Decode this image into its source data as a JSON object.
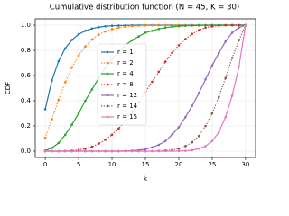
{
  "chart_data": {
    "type": "line",
    "title": "Cumulative distribution function (N = 45, K = 30)",
    "x_label": "k",
    "y_label": "CDF",
    "x": [
      0,
      1,
      2,
      3,
      4,
      5,
      6,
      7,
      8,
      9,
      10,
      11,
      12,
      13,
      14,
      15,
      16,
      17,
      18,
      19,
      20,
      21,
      22,
      23,
      24,
      25,
      26,
      27,
      28,
      29,
      30
    ],
    "xlim": [
      -1.5,
      31.5
    ],
    "xticks": [
      0,
      5,
      10,
      15,
      20,
      25,
      30
    ],
    "ylim": [
      -0.05,
      1.05
    ],
    "yticks": [
      {
        "value": 0,
        "label": "0.0"
      },
      {
        "value": 0.2,
        "label": "0.2"
      },
      {
        "value": 0.4,
        "label": "0.4"
      },
      {
        "value": 0.6,
        "label": "0.6"
      },
      {
        "value": 0.8,
        "label": "0.8"
      },
      {
        "value": 1,
        "label": "1.0"
      }
    ],
    "grid": true,
    "legend": "center",
    "series": [
      {
        "name": "r = 1",
        "color": "#1f77b4",
        "linestyle": "solid",
        "values": [
          0.333,
          0.561,
          0.714,
          0.816,
          0.883,
          0.927,
          0.955,
          0.973,
          0.984,
          0.991,
          0.995,
          0.997,
          0.998,
          0.999,
          1,
          1,
          1,
          1,
          1,
          1,
          1,
          1,
          1,
          1,
          1,
          1,
          1,
          1,
          1,
          1,
          1
        ]
      },
      {
        "name": "r = 2",
        "color": "#ff7f0e",
        "linestyle": "dotted",
        "values": [
          0.106,
          0.254,
          0.407,
          0.547,
          0.665,
          0.759,
          0.831,
          0.885,
          0.924,
          0.95,
          0.968,
          0.981,
          0.988,
          0.993,
          0.996,
          0.998,
          0.999,
          1,
          1,
          1,
          1,
          1,
          1,
          1,
          1,
          1,
          1,
          1,
          1,
          1,
          1
        ]
      },
      {
        "name": "r = 4",
        "color": "#2ca02c",
        "linestyle": "solid",
        "values": [
          0.005,
          0.025,
          0.065,
          0.13,
          0.21,
          0.3,
          0.4,
          0.49,
          0.58,
          0.66,
          0.73,
          0.79,
          0.84,
          0.88,
          0.91,
          0.94,
          0.955,
          0.97,
          0.98,
          0.987,
          0.992,
          0.995,
          0.997,
          0.998,
          0.999,
          1,
          1,
          1,
          1,
          1,
          1
        ]
      },
      {
        "name": "r = 8",
        "color": "#d62728",
        "linestyle": "dotted",
        "values": [
          0,
          0,
          0,
          0.001,
          0.004,
          0.01,
          0.02,
          0.035,
          0.06,
          0.09,
          0.13,
          0.18,
          0.24,
          0.31,
          0.39,
          0.47,
          0.55,
          0.63,
          0.71,
          0.78,
          0.84,
          0.89,
          0.93,
          0.96,
          0.98,
          0.99,
          0.996,
          0.999,
          1,
          1,
          1
        ]
      },
      {
        "name": "r = 12",
        "color": "#9467bd",
        "linestyle": "solid",
        "values": [
          0,
          0,
          0,
          0,
          0,
          0,
          0,
          0,
          0,
          0,
          0,
          0,
          0.002,
          0.004,
          0.008,
          0.015,
          0.03,
          0.05,
          0.08,
          0.13,
          0.19,
          0.27,
          0.36,
          0.46,
          0.57,
          0.68,
          0.78,
          0.87,
          0.94,
          0.98,
          1
        ]
      },
      {
        "name": "r = 14",
        "color": "#8c564b",
        "linestyle": "dotted",
        "values": [
          0,
          0,
          0,
          0,
          0,
          0,
          0,
          0,
          0,
          0,
          0,
          0,
          0,
          0,
          0,
          0,
          0,
          0.002,
          0.005,
          0.01,
          0.02,
          0.04,
          0.07,
          0.12,
          0.2,
          0.3,
          0.43,
          0.58,
          0.74,
          0.88,
          1
        ]
      },
      {
        "name": "r = 15",
        "color": "#e377c2",
        "linestyle": "solid",
        "values": [
          0,
          0,
          0,
          0,
          0,
          0,
          0,
          0,
          0,
          0,
          0,
          0,
          0,
          0,
          0,
          0,
          0,
          0,
          0,
          0,
          0.001,
          0.003,
          0.008,
          0.02,
          0.04,
          0.08,
          0.15,
          0.27,
          0.44,
          0.667,
          1
        ]
      }
    ]
  }
}
